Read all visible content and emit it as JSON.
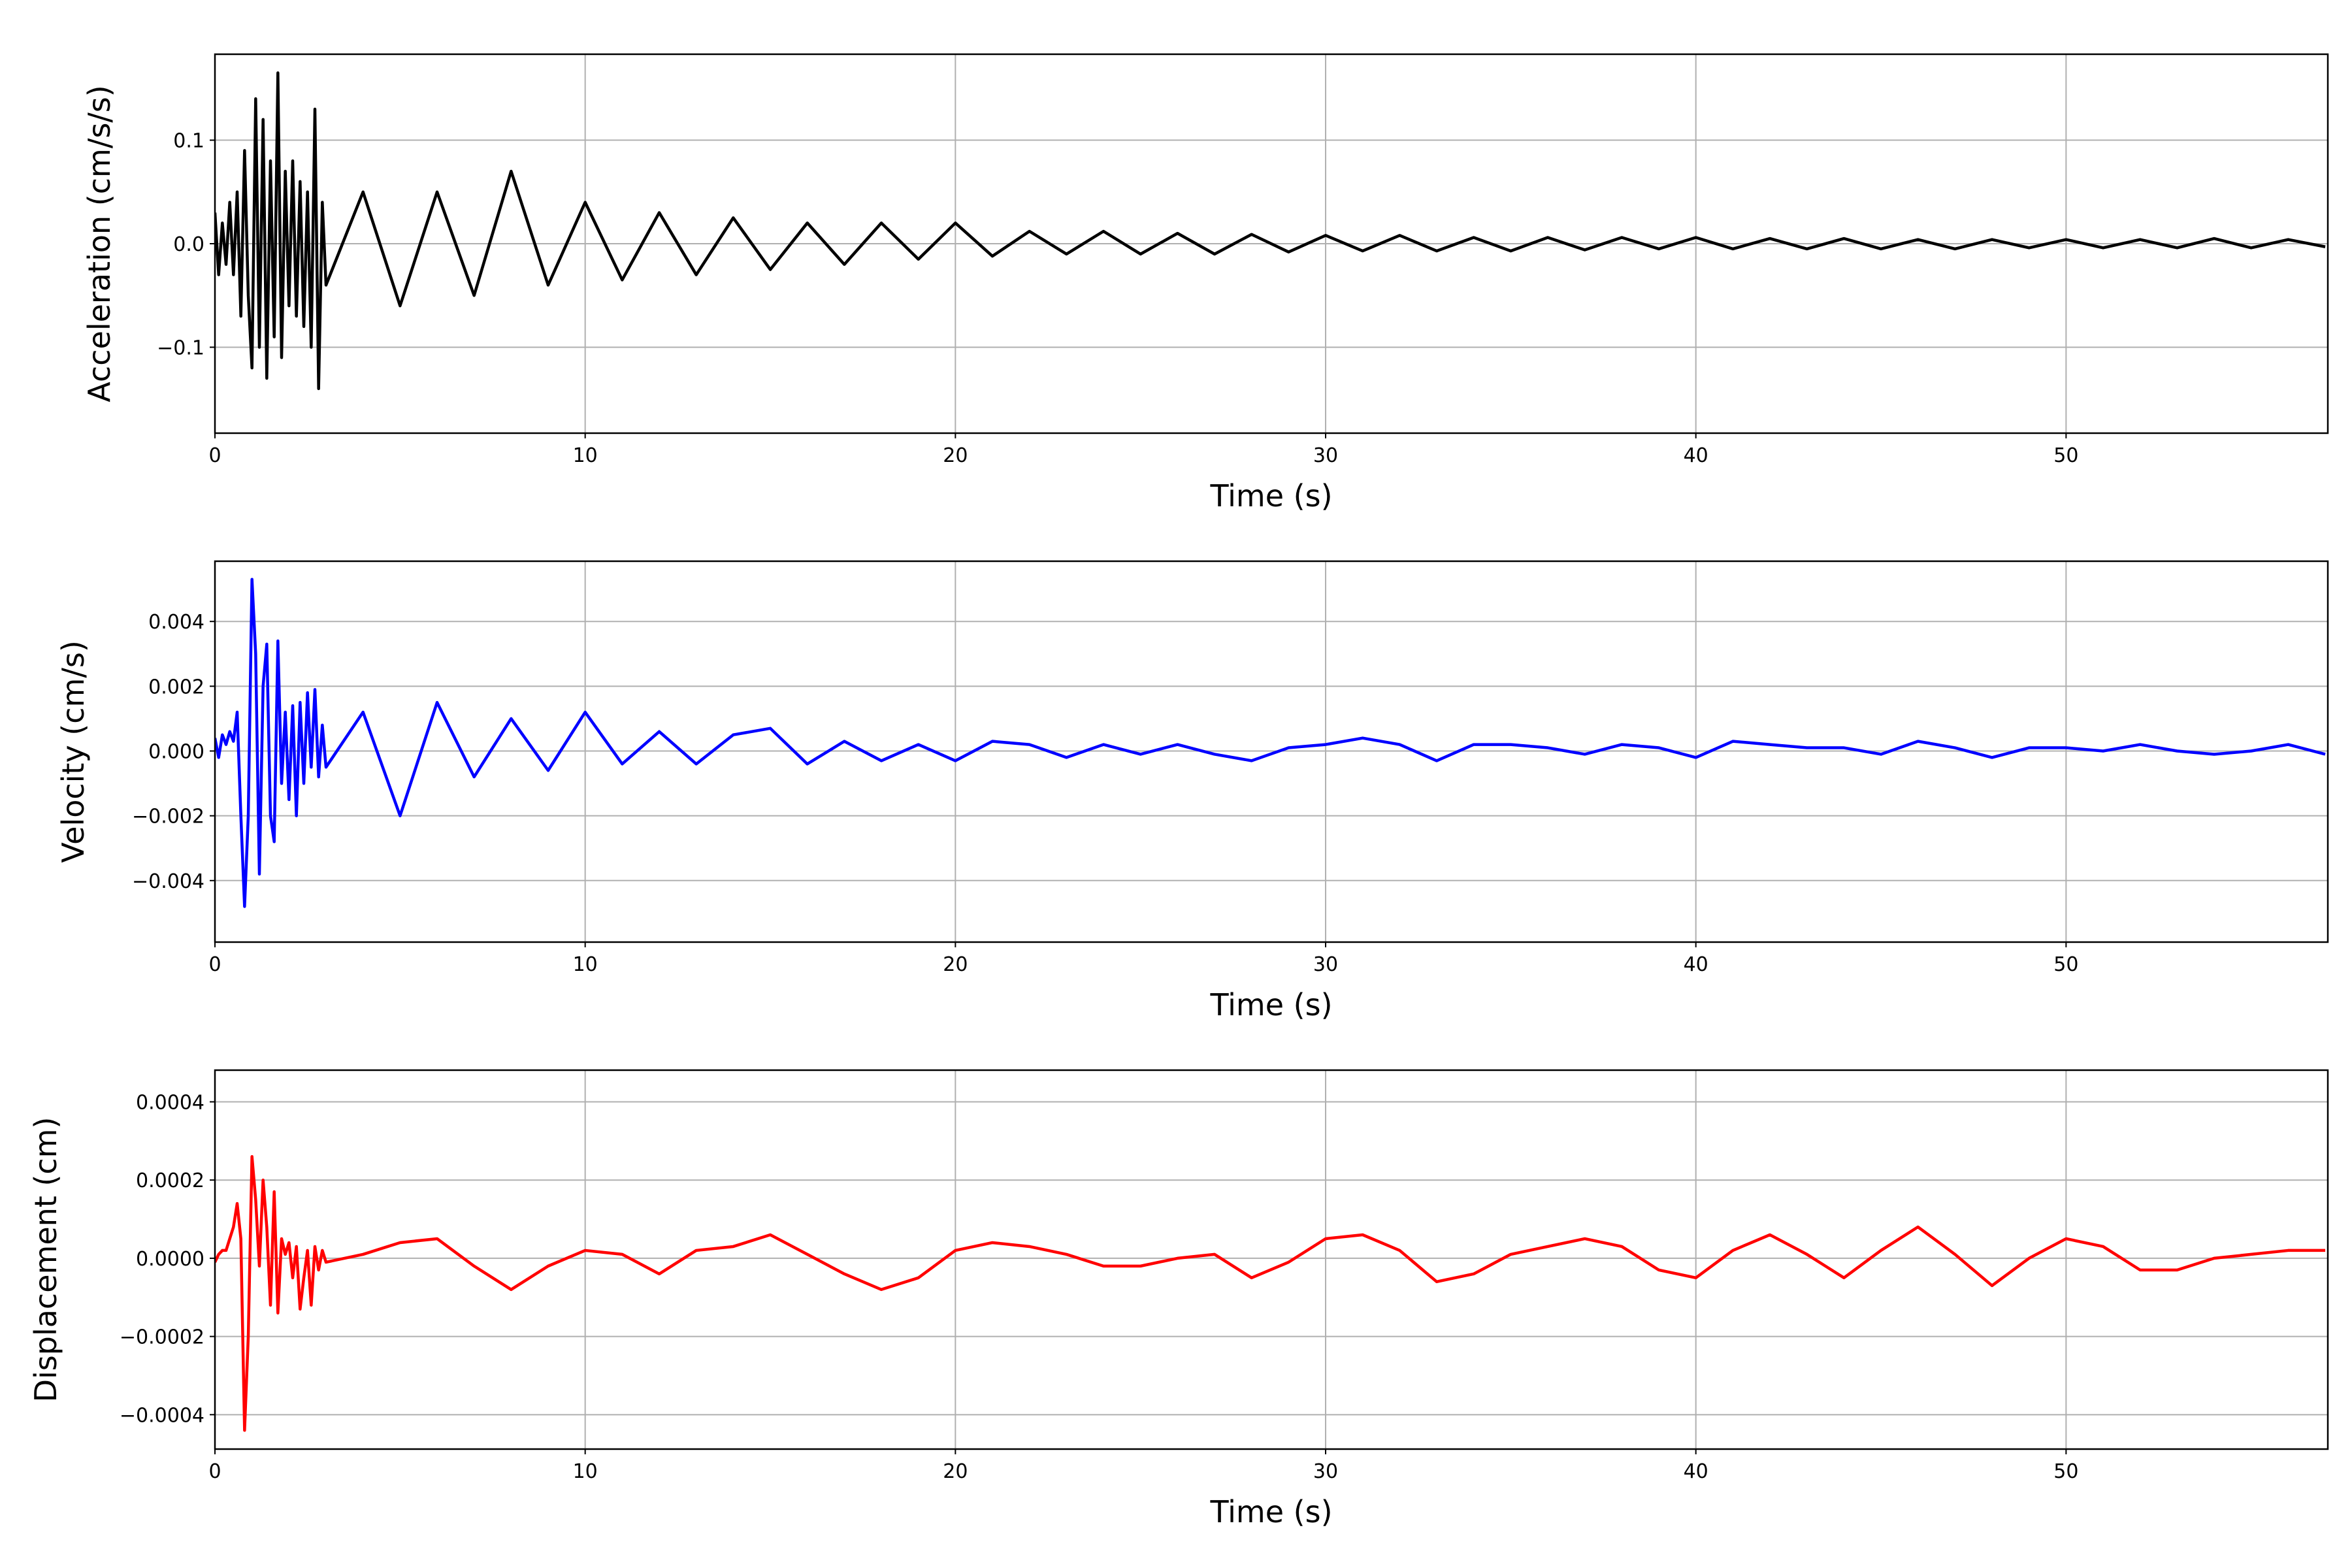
{
  "chart_data": [
    {
      "type": "line",
      "xlabel": "Time (s)",
      "ylabel": "Acceleration (cm/s/s)",
      "color": "#000000",
      "x": [
        0,
        0.1,
        0.2,
        0.3,
        0.4,
        0.5,
        0.6,
        0.7,
        0.8,
        0.9,
        1.0,
        1.1,
        1.2,
        1.3,
        1.4,
        1.5,
        1.6,
        1.7,
        1.8,
        1.9,
        2.0,
        2.1,
        2.2,
        2.3,
        2.4,
        2.5,
        2.6,
        2.7,
        2.8,
        2.9,
        3.0,
        4,
        5,
        6,
        7,
        8,
        9,
        10,
        11,
        12,
        13,
        14,
        15,
        16,
        17,
        18,
        19,
        20,
        21,
        22,
        23,
        24,
        25,
        26,
        27,
        28,
        29,
        30,
        31,
        32,
        33,
        34,
        35,
        36,
        37,
        38,
        39,
        40,
        41,
        42,
        43,
        44,
        45,
        46,
        47,
        48,
        49,
        50,
        51,
        52,
        53,
        54,
        55,
        56,
        57
      ],
      "values": [
        0.03,
        -0.03,
        0.02,
        -0.02,
        0.04,
        -0.03,
        0.05,
        -0.07,
        0.09,
        -0.05,
        -0.12,
        0.14,
        -0.1,
        0.12,
        -0.13,
        0.08,
        -0.09,
        0.165,
        -0.11,
        0.07,
        -0.06,
        0.08,
        -0.07,
        0.06,
        -0.08,
        0.05,
        -0.1,
        0.13,
        -0.14,
        0.04,
        -0.04,
        0.05,
        -0.06,
        0.05,
        -0.05,
        0.07,
        -0.04,
        0.04,
        -0.035,
        0.03,
        -0.03,
        0.025,
        -0.025,
        0.02,
        -0.02,
        0.02,
        -0.015,
        0.02,
        -0.012,
        0.012,
        -0.01,
        0.012,
        -0.01,
        0.01,
        -0.01,
        0.009,
        -0.008,
        0.008,
        -0.007,
        0.008,
        -0.007,
        0.006,
        -0.007,
        0.006,
        -0.006,
        0.006,
        -0.005,
        0.006,
        -0.005,
        0.005,
        -0.005,
        0.005,
        -0.005,
        0.004,
        -0.005,
        0.004,
        -0.004,
        0.004,
        -0.004,
        0.004,
        -0.004,
        0.005,
        -0.004,
        0.004,
        -0.003
      ],
      "xlim": [
        0,
        57.07
      ],
      "xticks": [
        0,
        10,
        20,
        30,
        40,
        50
      ],
      "ylim": [
        -0.183,
        0.183
      ],
      "yticks": [
        {
          "value": -0.1,
          "label": "−0.1"
        },
        {
          "value": 0,
          "label": "0.0"
        },
        0.1
      ],
      "grid": true
    },
    {
      "type": "line",
      "xlabel": "Time (s)",
      "ylabel": "Velocity (cm/s)",
      "color": "#0000ff",
      "x": [
        0,
        0.1,
        0.2,
        0.3,
        0.4,
        0.5,
        0.6,
        0.7,
        0.8,
        0.9,
        1.0,
        1.1,
        1.2,
        1.3,
        1.4,
        1.5,
        1.6,
        1.7,
        1.8,
        1.9,
        2.0,
        2.1,
        2.2,
        2.3,
        2.4,
        2.5,
        2.6,
        2.7,
        2.8,
        2.9,
        3.0,
        4,
        5,
        6,
        7,
        8,
        9,
        10,
        11,
        12,
        13,
        14,
        15,
        16,
        17,
        18,
        19,
        20,
        21,
        22,
        23,
        24,
        25,
        26,
        27,
        28,
        29,
        30,
        31,
        32,
        33,
        34,
        35,
        36,
        37,
        38,
        39,
        40,
        41,
        42,
        43,
        44,
        45,
        46,
        47,
        48,
        49,
        50,
        51,
        52,
        53,
        54,
        55,
        56,
        57
      ],
      "values": [
        0.0004,
        -0.0002,
        0.0005,
        0.0002,
        0.0006,
        0.0003,
        0.0012,
        -0.002,
        -0.0048,
        -0.002,
        0.0053,
        0.003,
        -0.0038,
        0.002,
        0.0033,
        -0.002,
        -0.0028,
        0.0034,
        -0.001,
        0.0012,
        -0.0015,
        0.0014,
        -0.002,
        0.0015,
        -0.001,
        0.0018,
        -0.0005,
        0.0019,
        -0.0008,
        0.0008,
        -0.0005,
        0.0012,
        -0.002,
        0.0015,
        -0.0008,
        0.001,
        -0.0006,
        0.0012,
        -0.0004,
        0.0006,
        -0.0004,
        0.0005,
        0.0007,
        -0.0004,
        0.0003,
        -0.0003,
        0.0002,
        -0.0003,
        0.0003,
        0.0002,
        -0.0002,
        0.0002,
        -0.0001,
        0.0002,
        -0.0001,
        -0.0003,
        0.0001,
        0.0002,
        0.0004,
        0.0002,
        -0.0003,
        0.0002,
        0.0002,
        0.0001,
        -0.0001,
        0.0002,
        0.0001,
        -0.0002,
        0.0003,
        0.0002,
        0.0001,
        0.0001,
        -0.0001,
        0.0003,
        0.0001,
        -0.0002,
        0.0001,
        0.0001,
        0,
        0.0002,
        0,
        -0.0001,
        0,
        0.0002,
        -0.0001
      ],
      "xlim": [
        0,
        57.07
      ],
      "xticks": [
        0,
        10,
        20,
        30,
        40,
        50
      ],
      "ylim": [
        -0.0059,
        0.00586
      ],
      "yticks": [
        {
          "value": -0.004,
          "label": "−0.004"
        },
        {
          "value": -0.002,
          "label": "−0.002"
        },
        {
          "value": 0,
          "label": "0.000"
        },
        0.002,
        0.004
      ],
      "grid": true
    },
    {
      "type": "line",
      "xlabel": "Time (s)",
      "ylabel": "Displacement (cm)",
      "color": "#ff0000",
      "x": [
        0,
        0.1,
        0.2,
        0.3,
        0.4,
        0.5,
        0.6,
        0.7,
        0.8,
        0.9,
        1.0,
        1.1,
        1.2,
        1.3,
        1.4,
        1.5,
        1.6,
        1.7,
        1.8,
        1.9,
        2.0,
        2.1,
        2.2,
        2.3,
        2.4,
        2.5,
        2.6,
        2.7,
        2.8,
        2.9,
        3.0,
        4,
        5,
        6,
        7,
        8,
        9,
        10,
        11,
        12,
        13,
        14,
        15,
        16,
        17,
        18,
        19,
        20,
        21,
        22,
        23,
        24,
        25,
        26,
        27,
        28,
        29,
        30,
        31,
        32,
        33,
        34,
        35,
        36,
        37,
        38,
        39,
        40,
        41,
        42,
        43,
        44,
        45,
        46,
        47,
        48,
        49,
        50,
        51,
        52,
        53,
        54,
        55,
        56,
        57
      ],
      "values": [
        -1e-05,
        1e-05,
        2e-05,
        2e-05,
        5e-05,
        8e-05,
        0.00014,
        5e-05,
        -0.00044,
        -0.0002,
        0.00026,
        0.00015,
        -2e-05,
        0.0002,
        8e-05,
        -0.00012,
        0.00017,
        -0.00014,
        5e-05,
        1e-05,
        4e-05,
        -5e-05,
        3e-05,
        -0.00013,
        -5e-05,
        2e-05,
        -0.00012,
        3e-05,
        -3e-05,
        2e-05,
        -1e-05,
        1e-05,
        4e-05,
        5e-05,
        -2e-05,
        -8e-05,
        -2e-05,
        2e-05,
        1e-05,
        -4e-05,
        2e-05,
        3e-05,
        6e-05,
        1e-05,
        -4e-05,
        -8e-05,
        -5e-05,
        2e-05,
        4e-05,
        3e-05,
        1e-05,
        -2e-05,
        -2e-05,
        0,
        1e-05,
        -5e-05,
        -1e-05,
        5e-05,
        6e-05,
        2e-05,
        -6e-05,
        -4e-05,
        1e-05,
        3e-05,
        5e-05,
        3e-05,
        -3e-05,
        -5e-05,
        2e-05,
        6e-05,
        1e-05,
        -5e-05,
        2e-05,
        8e-05,
        1e-05,
        -7e-05,
        0,
        5e-05,
        3e-05,
        -3e-05,
        -3e-05,
        0,
        1e-05,
        2e-05,
        2e-05
      ],
      "xlim": [
        0,
        57.07
      ],
      "xticks": [
        0,
        10,
        20,
        30,
        40,
        50
      ],
      "ylim": [
        -0.000488,
        0.000481
      ],
      "yticks": [
        {
          "value": -0.0004,
          "label": "−0.0004"
        },
        {
          "value": -0.0002,
          "label": "−0.0002"
        },
        {
          "value": 0,
          "label": "0.0000"
        },
        0.0002,
        0.0004
      ],
      "grid": true
    }
  ]
}
